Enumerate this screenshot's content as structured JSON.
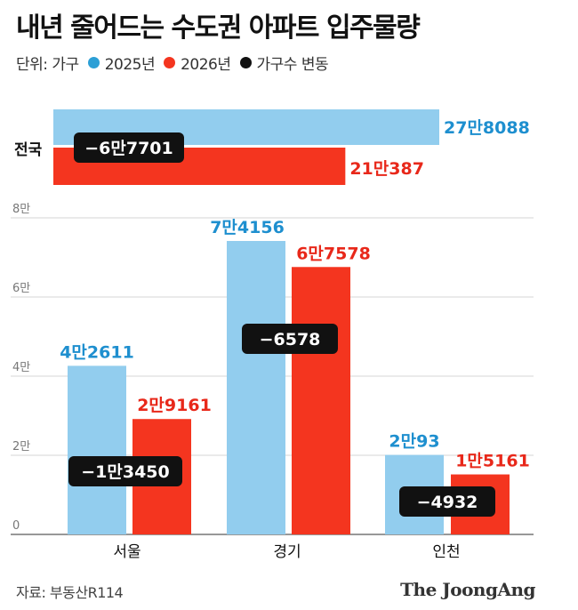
{
  "title": "내년 줄어드는 수도권 아파트 입주물량",
  "legend": {
    "unit_label": "단위: 가구",
    "items": [
      {
        "label": "2025년",
        "color": "#2c9fd6"
      },
      {
        "label": "2026년",
        "color": "#f4351f"
      },
      {
        "label": "가구수 변동",
        "color": "#111111"
      }
    ]
  },
  "colors": {
    "bar_2025": "#92cdee",
    "bar_2026": "#f4351f",
    "label_2025": "#1e8fcf",
    "label_2026": "#e8281a",
    "badge_bg": "#111111",
    "badge_text": "#ffffff",
    "grid": "#d4d4d4"
  },
  "chart_data": [
    {
      "type": "bar",
      "orientation": "horizontal",
      "categories": [
        "전국"
      ],
      "series": [
        {
          "name": "2025년",
          "values": [
            278088
          ],
          "value_labels": [
            "27만8088"
          ]
        },
        {
          "name": "2026년",
          "values": [
            210387
          ],
          "value_labels": [
            "21만387"
          ]
        }
      ],
      "change_labels": [
        "−6만7701"
      ],
      "xlim": [
        0,
        300000
      ]
    },
    {
      "type": "bar",
      "categories": [
        "서울",
        "경기",
        "인천"
      ],
      "series": [
        {
          "name": "2025년",
          "values": [
            42611,
            74156,
            20093
          ],
          "value_labels": [
            "4만2611",
            "7만4156",
            "2만93"
          ]
        },
        {
          "name": "2026년",
          "values": [
            29161,
            67578,
            15161
          ],
          "value_labels": [
            "2만9161",
            "6만7578",
            "1만5161"
          ]
        }
      ],
      "change_labels": [
        "−1만3450",
        "−6578",
        "−4932"
      ],
      "y_ticks": [
        {
          "value": 0,
          "label": "0"
        },
        {
          "value": 20000,
          "label": "2만"
        },
        {
          "value": 40000,
          "label": "4만"
        },
        {
          "value": 60000,
          "label": "6만"
        },
        {
          "value": 80000,
          "label": "8만"
        }
      ],
      "ylim": [
        0,
        80000
      ],
      "grid": true
    }
  ],
  "footer": {
    "source": "자료: 부동산R114",
    "brand": "The JoongAng"
  }
}
